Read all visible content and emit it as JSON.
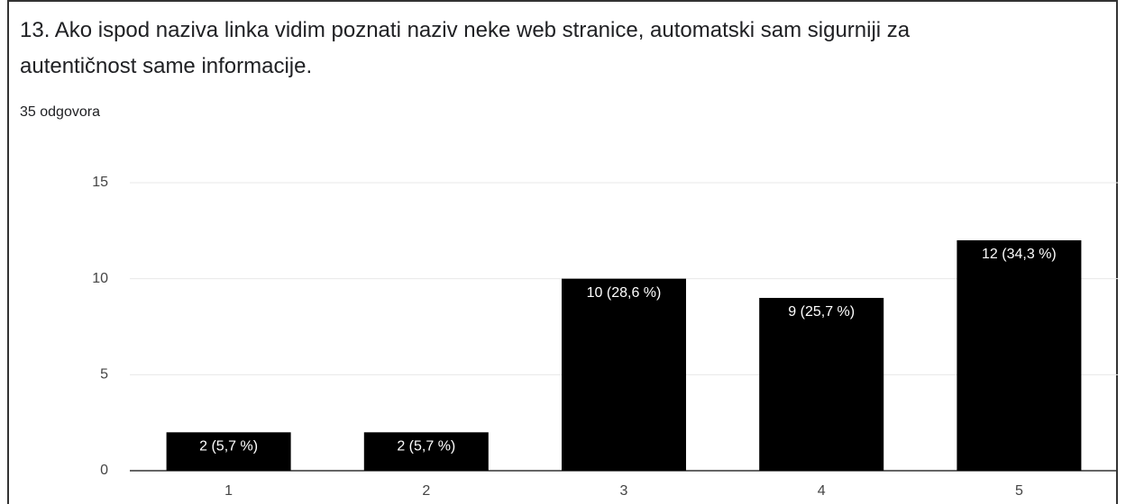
{
  "chart_data": {
    "type": "bar",
    "title": "13. Ako ispod naziva linka vidim poznati naziv neke web stranice, automatski sam sigurniji za autentičnost same informacije.",
    "subtitle": "35 odgovora",
    "categories": [
      "1",
      "2",
      "3",
      "4",
      "5"
    ],
    "values": [
      2,
      2,
      10,
      9,
      12
    ],
    "value_labels": [
      "2 (5,7 %)",
      "2 (5,7 %)",
      "10 (28,6 %)",
      "9 (25,7 %)",
      "12 (34,3 %)"
    ],
    "color": "#000000",
    "ylim": [
      0,
      15
    ],
    "yticks": [
      0,
      5,
      10,
      15
    ],
    "grid": true
  }
}
